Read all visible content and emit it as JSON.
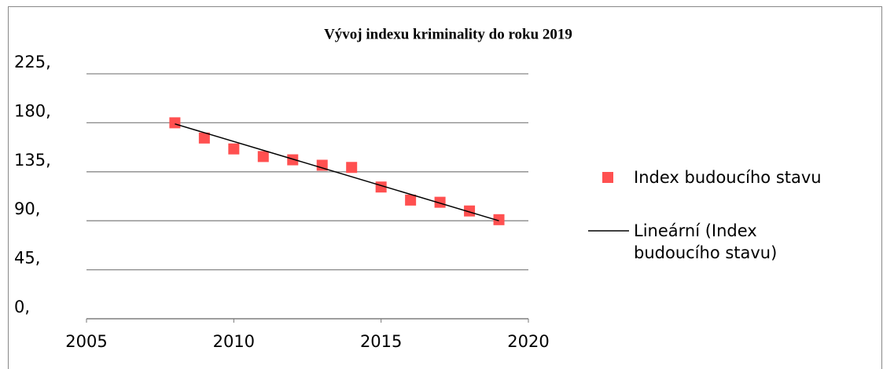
{
  "chart_data": {
    "type": "scatter",
    "title": "Vývoj indexu kriminality do roku 2019",
    "series": [
      {
        "name": "Index budoucího stavu",
        "color": "#ff5050",
        "x": [
          2008,
          2009,
          2010,
          2011,
          2012,
          2013,
          2014,
          2015,
          2016,
          2017,
          2018,
          2019
        ],
        "values": [
          180,
          166,
          156,
          149,
          146,
          141,
          139,
          121,
          109,
          107,
          99,
          91
        ]
      },
      {
        "name": "Lineární (Index budoucího stavu)",
        "color": "#000000",
        "style": "line",
        "x": [
          2008,
          2019
        ],
        "values": [
          179,
          90
        ]
      }
    ],
    "xlim": [
      2005,
      2020
    ],
    "xticks": [
      2005,
      2010,
      2015,
      2020
    ],
    "ylim": [
      0,
      225
    ],
    "yticks": [
      {
        "value": 0,
        "label": "0,"
      },
      {
        "value": 45,
        "label": "45,"
      },
      {
        "value": 90,
        "label": "90,"
      },
      {
        "value": 135,
        "label": "135,"
      },
      {
        "value": 180,
        "label": "180,"
      },
      {
        "value": 225,
        "label": "225,"
      }
    ],
    "grid": true,
    "legend": "right"
  }
}
